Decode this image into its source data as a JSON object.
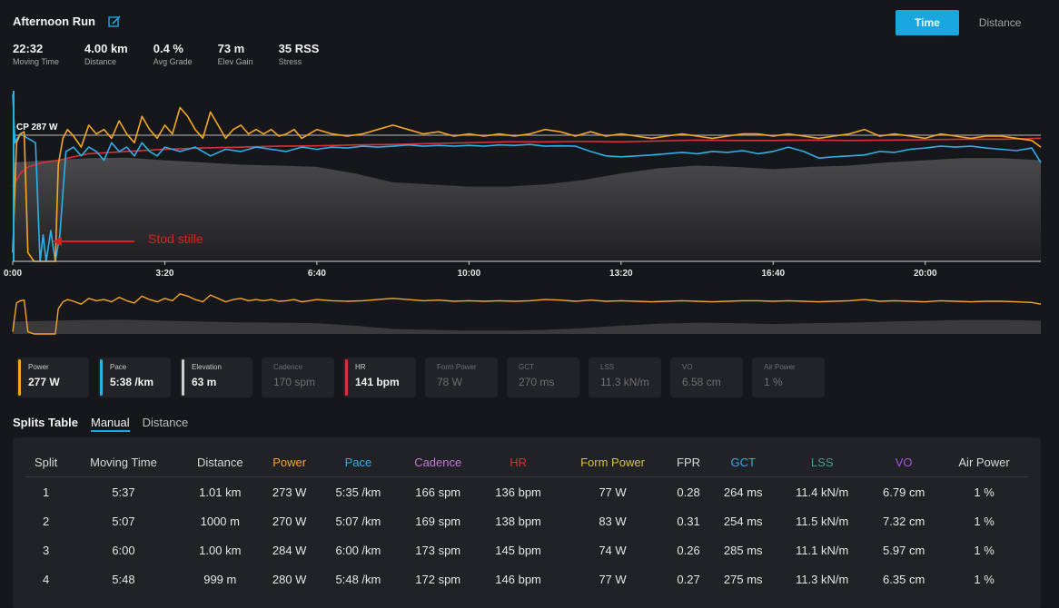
{
  "activity": {
    "title": "Afternoon Run",
    "edit_icon": "edit-icon"
  },
  "stats": [
    {
      "value": "22:32",
      "label": "Moving Time"
    },
    {
      "value": "4.00 km",
      "label": "Distance"
    },
    {
      "value": "0.4 %",
      "label": "Avg Grade"
    },
    {
      "value": "73 m",
      "label": "Elev Gain"
    },
    {
      "value": "35 RSS",
      "label": "Stress"
    }
  ],
  "toggle": {
    "time": "Time",
    "distance": "Distance",
    "selected": "time"
  },
  "chart_data": {
    "type": "line",
    "xlabel": "",
    "ylabel": "",
    "x_ticks": [
      "0:00",
      "3:20",
      "6:40",
      "10:00",
      "13:20",
      "16:40",
      "20:00"
    ],
    "x_tick_seconds": [
      0,
      200,
      400,
      600,
      800,
      1000,
      1200
    ],
    "x_range_seconds": [
      0,
      1352
    ],
    "cp_line": {
      "label": "CP 287 W",
      "value": 287
    },
    "annotation": {
      "text": "Stod stille",
      "color": "#e02020"
    },
    "power_range": [
      0,
      380
    ],
    "series": [
      {
        "key": "power",
        "color": "#f5a623",
        "x": [
          0,
          5,
          10,
          15,
          20,
          28,
          32,
          36,
          40,
          48,
          52,
          56,
          60,
          66,
          72,
          80,
          90,
          100,
          110,
          120,
          130,
          140,
          150,
          160,
          170,
          180,
          190,
          200,
          210,
          220,
          230,
          240,
          250,
          260,
          270,
          280,
          290,
          300,
          310,
          320,
          330,
          340,
          350,
          360,
          370,
          380,
          390,
          400,
          420,
          440,
          460,
          480,
          500,
          520,
          540,
          560,
          580,
          600,
          620,
          640,
          660,
          680,
          700,
          720,
          740,
          760,
          780,
          800,
          820,
          840,
          860,
          880,
          900,
          920,
          940,
          960,
          980,
          1000,
          1020,
          1040,
          1060,
          1080,
          1100,
          1120,
          1140,
          1160,
          1180,
          1200,
          1220,
          1240,
          1260,
          1280,
          1300,
          1320,
          1340,
          1352
        ],
        "y": [
          20,
          270,
          290,
          295,
          20,
          0,
          0,
          0,
          0,
          0,
          0,
          0,
          220,
          280,
          300,
          285,
          260,
          310,
          290,
          300,
          280,
          320,
          290,
          270,
          330,
          300,
          280,
          310,
          290,
          350,
          330,
          300,
          280,
          340,
          310,
          280,
          300,
          310,
          290,
          300,
          290,
          300,
          285,
          290,
          300,
          280,
          290,
          300,
          290,
          285,
          290,
          300,
          310,
          300,
          290,
          295,
          285,
          290,
          285,
          290,
          285,
          290,
          300,
          295,
          285,
          295,
          285,
          290,
          285,
          280,
          285,
          290,
          285,
          280,
          285,
          290,
          290,
          285,
          290,
          285,
          280,
          285,
          290,
          300,
          285,
          290,
          285,
          280,
          290,
          285,
          280,
          285,
          285,
          280,
          275,
          260
        ]
      },
      {
        "key": "pace",
        "color": "#2bb0e8",
        "x": [
          0,
          3,
          6,
          10,
          20,
          30,
          36,
          40,
          44,
          50,
          56,
          62,
          70,
          80,
          90,
          100,
          110,
          120,
          130,
          140,
          150,
          160,
          170,
          180,
          190,
          200,
          220,
          240,
          260,
          280,
          300,
          320,
          340,
          360,
          380,
          400,
          420,
          440,
          460,
          480,
          500,
          520,
          540,
          560,
          580,
          600,
          620,
          640,
          660,
          680,
          700,
          720,
          740,
          760,
          780,
          800,
          820,
          840,
          860,
          880,
          900,
          920,
          940,
          960,
          980,
          1000,
          1020,
          1040,
          1060,
          1080,
          1100,
          1120,
          1140,
          1160,
          1180,
          1200,
          1220,
          1240,
          1260,
          1280,
          1300,
          1320,
          1340,
          1352
        ],
        "y": [
          380,
          270,
          280,
          290,
          280,
          270,
          0,
          60,
          0,
          70,
          0,
          60,
          250,
          260,
          240,
          260,
          250,
          230,
          270,
          250,
          260,
          240,
          270,
          250,
          240,
          260,
          250,
          260,
          240,
          255,
          250,
          260,
          255,
          250,
          260,
          255,
          260,
          258,
          262,
          260,
          262,
          265,
          262,
          264,
          262,
          264,
          262,
          265,
          264,
          266,
          262,
          263,
          262,
          250,
          240,
          238,
          240,
          242,
          245,
          248,
          245,
          250,
          248,
          252,
          245,
          250,
          260,
          250,
          235,
          238,
          240,
          242,
          250,
          248,
          255,
          258,
          262,
          260,
          262,
          258,
          255,
          252,
          258,
          225
        ]
      },
      {
        "key": "hr",
        "color": "#d9303a",
        "x": [
          0,
          10,
          20,
          40,
          60,
          80,
          100,
          150,
          200,
          250,
          300,
          350,
          400,
          450,
          500,
          550,
          600,
          650,
          700,
          750,
          800,
          850,
          900,
          950,
          1000,
          1050,
          1100,
          1150,
          1200,
          1250,
          1300,
          1352
        ],
        "y": [
          170,
          200,
          215,
          225,
          230,
          238,
          245,
          250,
          255,
          258,
          260,
          262,
          263,
          265,
          266,
          268,
          270,
          272,
          272,
          273,
          272,
          274,
          276,
          275,
          275,
          276,
          275,
          276,
          277,
          278,
          278,
          280
        ]
      },
      {
        "key": "elevation",
        "color": "#3b3b3b",
        "x": [
          0,
          50,
          100,
          150,
          200,
          250,
          300,
          350,
          400,
          450,
          500,
          550,
          600,
          650,
          700,
          750,
          800,
          850,
          900,
          950,
          1000,
          1050,
          1100,
          1150,
          1200,
          1250,
          1300,
          1352
        ],
        "y": [
          225,
          230,
          235,
          236,
          230,
          225,
          220,
          218,
          215,
          200,
          180,
          175,
          170,
          170,
          175,
          185,
          200,
          212,
          218,
          215,
          210,
          215,
          218,
          225,
          230,
          235,
          235,
          230
        ]
      }
    ]
  },
  "metrics": [
    {
      "label": "Power",
      "value": "277 W",
      "color": "#f5a623",
      "active": true
    },
    {
      "label": "Pace",
      "value": "5:38 /km",
      "color": "#2bb0e8",
      "active": true
    },
    {
      "label": "Elevation",
      "value": "63 m",
      "color": "#cfcfcf",
      "active": true
    },
    {
      "label": "Cadence",
      "value": "170 spm",
      "color": "",
      "active": false
    },
    {
      "label": "HR",
      "value": "141 bpm",
      "color": "#d9303a",
      "active": true
    },
    {
      "label": "Form Power",
      "value": "78 W",
      "color": "",
      "active": false
    },
    {
      "label": "GCT",
      "value": "270 ms",
      "color": "",
      "active": false
    },
    {
      "label": "LSS",
      "value": "11.3 kN/m",
      "color": "",
      "active": false
    },
    {
      "label": "VO",
      "value": "6.58 cm",
      "color": "",
      "active": false
    },
    {
      "label": "Air Power",
      "value": "1 %",
      "color": "",
      "active": false
    }
  ],
  "splits": {
    "tabs": [
      "Splits Table",
      "Manual",
      "Distance"
    ],
    "selected": "Manual",
    "columns": [
      {
        "label": "Split",
        "color": "#d8d8d8"
      },
      {
        "label": "Moving Time",
        "color": "#d8d8d8"
      },
      {
        "label": "Distance",
        "color": "#d8d8d8"
      },
      {
        "label": "Power",
        "color": "#f5a623"
      },
      {
        "label": "Pace",
        "color": "#2bb0e8"
      },
      {
        "label": "Cadence",
        "color": "#c57ad8"
      },
      {
        "label": "HR",
        "color": "#d9303a"
      },
      {
        "label": "Form Power",
        "color": "#d8c33a"
      },
      {
        "label": "FPR",
        "color": "#d8d8d8"
      },
      {
        "label": "GCT",
        "color": "#2bb0e8"
      },
      {
        "label": "LSS",
        "color": "#4a9a8a"
      },
      {
        "label": "VO",
        "color": "#a855e0"
      },
      {
        "label": "Air Power",
        "color": "#d8d8d8"
      }
    ],
    "rows": [
      [
        "1",
        "5:37",
        "1.01 km",
        "273 W",
        "5:35 /km",
        "166 spm",
        "136 bpm",
        "77 W",
        "0.28",
        "264 ms",
        "11.4 kN/m",
        "6.79 cm",
        "1 %"
      ],
      [
        "2",
        "5:07",
        "1000 m",
        "270 W",
        "5:07 /km",
        "169 spm",
        "138 bpm",
        "83 W",
        "0.31",
        "254 ms",
        "11.5 kN/m",
        "7.32 cm",
        "1 %"
      ],
      [
        "3",
        "6:00",
        "1.00 km",
        "284 W",
        "6:00 /km",
        "173 spm",
        "145 bpm",
        "74 W",
        "0.26",
        "285 ms",
        "11.1 kN/m",
        "5.97 cm",
        "1 %"
      ],
      [
        "4",
        "5:48",
        "999 m",
        "280 W",
        "5:48 /km",
        "172 spm",
        "146 bpm",
        "77 W",
        "0.27",
        "275 ms",
        "11.3 kN/m",
        "6.35 cm",
        "1 %"
      ]
    ]
  }
}
